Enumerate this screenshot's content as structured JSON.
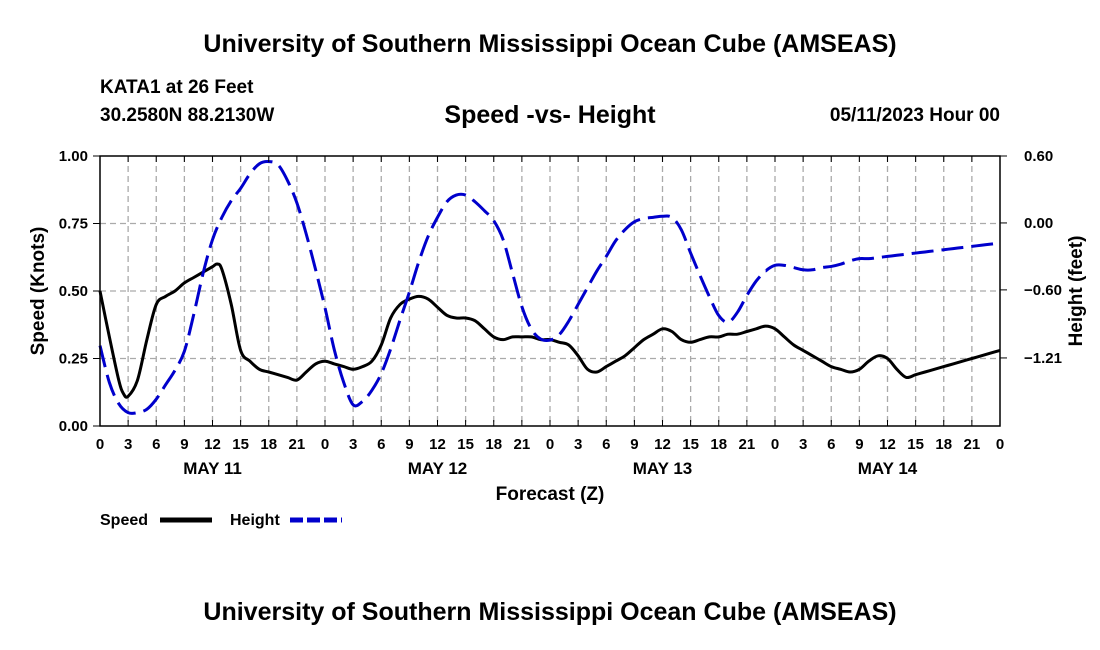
{
  "header": {
    "title": "University of Southern Mississippi Ocean Cube (AMSEAS)",
    "station": "KATA1 at 26 Feet",
    "coords": "30.2580N  88.2130W",
    "subtitle": "Speed -vs- Height",
    "datetime": "05/11/2023 Hour 00"
  },
  "footer": {
    "title": "University of Southern Mississippi Ocean Cube (AMSEAS)"
  },
  "chart_data": {
    "type": "line",
    "xlabel": "Forecast (Z)",
    "ylabel": "Speed (Knots)",
    "y2label": "Height (feet)",
    "xlim": [
      0,
      96
    ],
    "ylim": [
      0,
      1
    ],
    "y2lim": [
      -1.82,
      0.6
    ],
    "grid": true,
    "x_tick_labels": [
      "0",
      "3",
      "6",
      "9",
      "12",
      "15",
      "18",
      "21",
      "0",
      "3",
      "6",
      "9",
      "12",
      "15",
      "18",
      "21",
      "0",
      "3",
      "6",
      "9",
      "12",
      "15",
      "18",
      "21",
      "0",
      "3",
      "6",
      "9",
      "12",
      "15",
      "18",
      "21",
      "0"
    ],
    "y_ticks": [
      0.0,
      0.25,
      0.5,
      0.75,
      1.0
    ],
    "y_tick_labels": [
      "0.00",
      "0.25",
      "0.50",
      "0.75",
      "1.00"
    ],
    "y2_ticks": [
      0.6,
      0.0,
      -0.6,
      -1.21
    ],
    "y2_tick_labels": [
      "0.60",
      "0.00",
      "−0.60",
      "−1.21"
    ],
    "day_labels": [
      {
        "text": "MAY 11",
        "hour": 12
      },
      {
        "text": "MAY 12",
        "hour": 36
      },
      {
        "text": "MAY 13",
        "hour": 60
      },
      {
        "text": "MAY 14",
        "hour": 84
      }
    ],
    "legend": {
      "position": "bottom-left",
      "entries": [
        {
          "label": "Speed",
          "color": "#000000",
          "style": "solid"
        },
        {
          "label": "Height",
          "color": "#0000cc",
          "style": "dashed"
        }
      ]
    },
    "series": [
      {
        "name": "Speed",
        "axis": "left",
        "color": "#000000",
        "dash": "solid",
        "x": [
          0,
          1,
          2,
          2.5,
          3,
          4,
          5,
          6,
          7,
          8,
          9,
          10,
          11,
          12,
          12.5,
          13,
          14,
          15,
          16,
          17,
          18,
          19,
          20,
          21,
          22,
          23,
          24,
          25,
          26,
          27,
          28,
          29,
          30,
          31,
          32,
          33,
          34,
          35,
          36,
          37,
          38,
          39,
          40,
          41,
          42,
          43,
          44,
          45,
          46,
          47,
          48,
          49,
          50,
          51,
          52,
          53,
          54,
          55,
          56,
          57,
          58,
          59,
          60,
          61,
          62,
          63,
          64,
          65,
          66,
          67,
          68,
          69,
          70,
          71,
          72,
          73,
          74,
          75,
          76,
          77,
          78,
          79,
          80,
          81,
          82,
          83,
          84,
          85,
          86,
          87,
          88,
          89,
          90,
          91,
          92,
          93,
          94,
          95,
          96
        ],
        "values": [
          0.5,
          0.33,
          0.17,
          0.12,
          0.11,
          0.17,
          0.32,
          0.45,
          0.48,
          0.5,
          0.53,
          0.55,
          0.57,
          0.59,
          0.6,
          0.58,
          0.45,
          0.28,
          0.24,
          0.21,
          0.2,
          0.19,
          0.18,
          0.17,
          0.2,
          0.23,
          0.24,
          0.23,
          0.22,
          0.21,
          0.22,
          0.24,
          0.3,
          0.4,
          0.45,
          0.47,
          0.48,
          0.47,
          0.44,
          0.41,
          0.4,
          0.4,
          0.39,
          0.36,
          0.33,
          0.32,
          0.33,
          0.33,
          0.33,
          0.32,
          0.32,
          0.31,
          0.3,
          0.26,
          0.21,
          0.2,
          0.22,
          0.24,
          0.26,
          0.29,
          0.32,
          0.34,
          0.36,
          0.35,
          0.32,
          0.31,
          0.32,
          0.33,
          0.33,
          0.34,
          0.34,
          0.35,
          0.36,
          0.37,
          0.36,
          0.33,
          0.3,
          0.28,
          0.26,
          0.24,
          0.22,
          0.21,
          0.2,
          0.21,
          0.24,
          0.26,
          0.25,
          0.21,
          0.18,
          0.19,
          0.2,
          0.21,
          0.22,
          0.23,
          0.24,
          0.25,
          0.26,
          0.27,
          0.28
        ]
      },
      {
        "name": "Height",
        "axis": "right",
        "color": "#0000cc",
        "dash": "dashed",
        "x": [
          0,
          1,
          2,
          3,
          4,
          5,
          6,
          7,
          8,
          9,
          10,
          11,
          12,
          13,
          14,
          15,
          16,
          17,
          18,
          19,
          20,
          21,
          22,
          23,
          24,
          25,
          26,
          27,
          28,
          29,
          30,
          31,
          32,
          33,
          34,
          35,
          36,
          37,
          38,
          39,
          40,
          41,
          42,
          43,
          44,
          45,
          46,
          47,
          48,
          49,
          50,
          51,
          52,
          53,
          54,
          55,
          56,
          57,
          58,
          59,
          60,
          61,
          62,
          63,
          64,
          65,
          66,
          67,
          68,
          69,
          70,
          71,
          72,
          73,
          74,
          75,
          76,
          77,
          78,
          79,
          80,
          81,
          82,
          83,
          84,
          85,
          86,
          87,
          88,
          89,
          90,
          91,
          92,
          93,
          94,
          95,
          96
        ],
        "values": [
          -1.1,
          -1.43,
          -1.62,
          -1.7,
          -1.7,
          -1.67,
          -1.58,
          -1.45,
          -1.32,
          -1.15,
          -0.82,
          -0.45,
          -0.15,
          0.05,
          0.2,
          0.31,
          0.44,
          0.53,
          0.55,
          0.52,
          0.38,
          0.18,
          -0.1,
          -0.42,
          -0.76,
          -1.14,
          -1.43,
          -1.63,
          -1.6,
          -1.5,
          -1.35,
          -1.13,
          -0.87,
          -0.62,
          -0.35,
          -0.12,
          0.05,
          0.19,
          0.25,
          0.25,
          0.19,
          0.11,
          0.02,
          -0.15,
          -0.45,
          -0.75,
          -0.95,
          -1.04,
          -1.05,
          -1.0,
          -0.88,
          -0.73,
          -0.58,
          -0.43,
          -0.3,
          -0.16,
          -0.06,
          0.01,
          0.04,
          0.05,
          0.06,
          0.05,
          -0.06,
          -0.27,
          -0.47,
          -0.66,
          -0.83,
          -0.89,
          -0.8,
          -0.65,
          -0.52,
          -0.43,
          -0.38,
          -0.38,
          -0.4,
          -0.42,
          -0.42,
          -0.4,
          -0.39,
          -0.37,
          -0.34,
          -0.32,
          -0.32,
          -0.31,
          -0.3,
          -0.29,
          -0.28,
          -0.27,
          -0.26,
          -0.25,
          -0.24,
          -0.23,
          -0.22,
          -0.21,
          -0.2,
          -0.19,
          -0.18
        ]
      }
    ]
  }
}
